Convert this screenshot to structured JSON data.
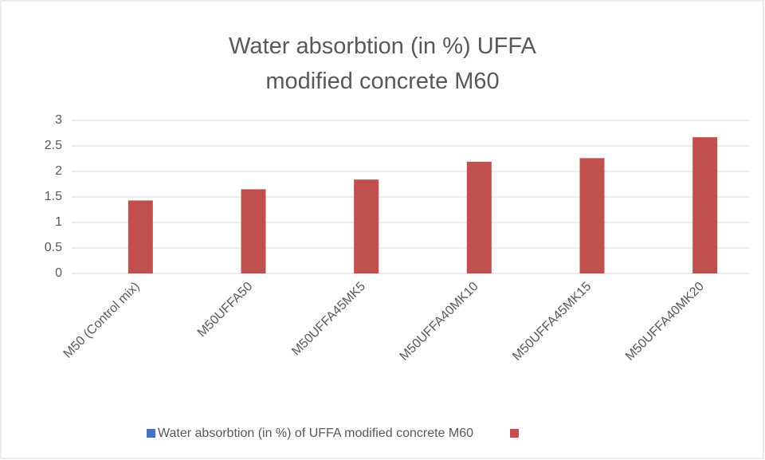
{
  "chart_data": {
    "type": "bar",
    "title": "Water absorbtion (in %) UFFA modified concrete M60",
    "categories": [
      "M50 (Control mix)",
      "M50UFFA50",
      "M50UFFA45MK5",
      "M50UFFA40MK10",
      "M50UFFA45MK15",
      "M50UFFA40MK20"
    ],
    "series": [
      {
        "name": "Water absorbtion (in %) of UFFA modified concrete M60",
        "color": "#4472c4",
        "values": [
          null,
          null,
          null,
          null,
          null,
          null
        ]
      },
      {
        "color": "#c0504d",
        "values": [
          1.43,
          1.65,
          1.84,
          2.19,
          2.26,
          2.67
        ]
      }
    ],
    "ylim": [
      0,
      3
    ],
    "yticks": [
      0,
      0.5,
      1,
      1.5,
      2,
      2.5,
      3
    ],
    "grid": true,
    "legend": "bottom"
  }
}
